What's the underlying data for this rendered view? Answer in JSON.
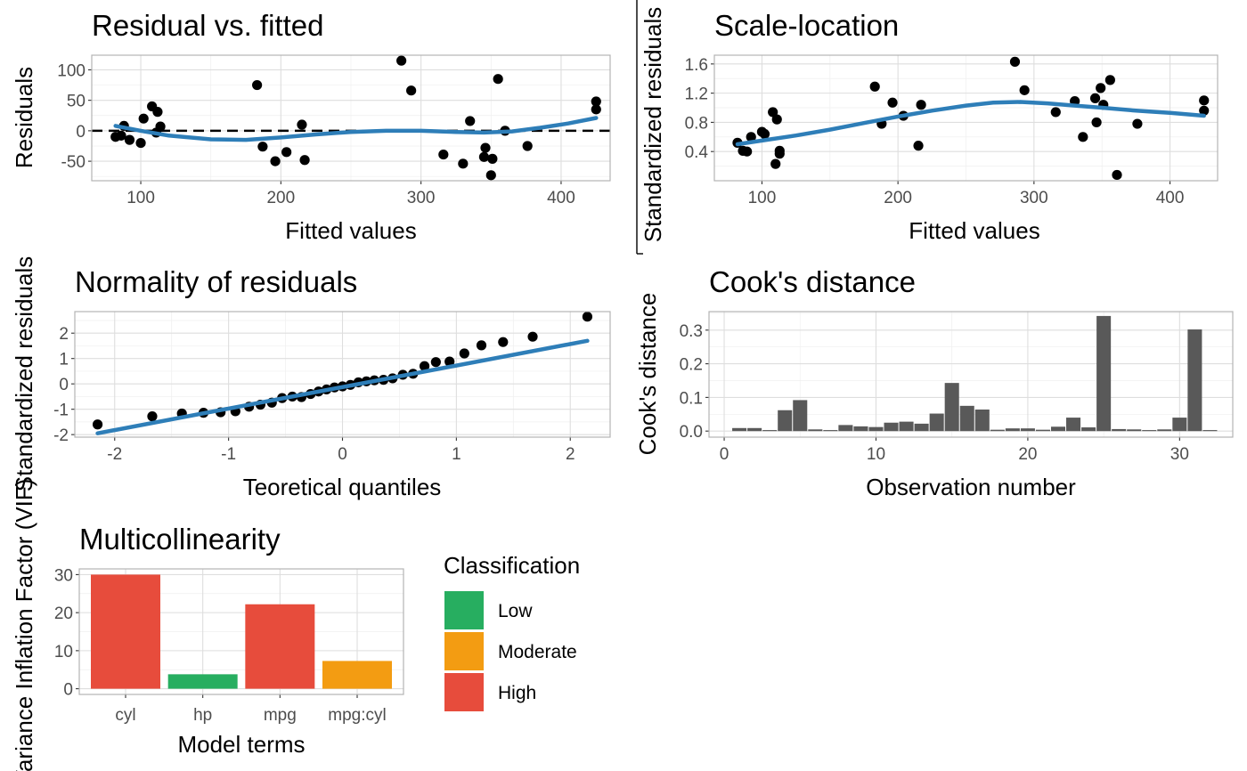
{
  "chart_data": [
    {
      "id": "resid",
      "type": "scatter",
      "title": "Residual vs. fitted",
      "xlabel": "Fitted values",
      "ylabel": "Residuals",
      "xlim": [
        65,
        435
      ],
      "ylim": [
        -82,
        124
      ],
      "xticks": [
        100,
        200,
        300,
        400
      ],
      "yticks": [
        -50,
        0,
        50,
        100
      ],
      "grid": true,
      "reference_line": {
        "y": 0,
        "style": "dashed",
        "color": "#000000"
      },
      "points_color": "#000000",
      "smooth_color": "#2e7eb8",
      "points": [
        [
          82,
          -10
        ],
        [
          86,
          -8
        ],
        [
          88,
          8
        ],
        [
          92,
          -15
        ],
        [
          100,
          -20
        ],
        [
          102,
          20
        ],
        [
          108,
          40
        ],
        [
          111,
          -3
        ],
        [
          112,
          31
        ],
        [
          114,
          7
        ],
        [
          183,
          75
        ],
        [
          187,
          -26
        ],
        [
          196,
          -50
        ],
        [
          204,
          -35
        ],
        [
          215,
          10
        ],
        [
          217,
          -48
        ],
        [
          286,
          115
        ],
        [
          293,
          66
        ],
        [
          316,
          -39
        ],
        [
          330,
          -54
        ],
        [
          335,
          16
        ],
        [
          345,
          -43
        ],
        [
          346,
          -28
        ],
        [
          350,
          -73
        ],
        [
          351,
          -46
        ],
        [
          355,
          85
        ],
        [
          360,
          0
        ],
        [
          376,
          -25
        ],
        [
          425,
          48
        ],
        [
          425,
          35
        ]
      ],
      "smooth": [
        [
          82,
          8
        ],
        [
          100,
          0
        ],
        [
          120,
          -8
        ],
        [
          150,
          -14
        ],
        [
          175,
          -15
        ],
        [
          200,
          -11
        ],
        [
          225,
          -6
        ],
        [
          250,
          -2
        ],
        [
          275,
          0
        ],
        [
          300,
          0
        ],
        [
          325,
          -2
        ],
        [
          345,
          -3
        ],
        [
          365,
          -1
        ],
        [
          385,
          5
        ],
        [
          405,
          12
        ],
        [
          425,
          21
        ]
      ]
    },
    {
      "id": "scaleloc",
      "type": "scatter",
      "title": "Scale-location",
      "xlabel": "Fitted values",
      "ylabel": "Standardized residuals",
      "xlim": [
        65,
        435
      ],
      "ylim": [
        0.0,
        1.72
      ],
      "xticks": [
        100,
        200,
        300,
        400
      ],
      "yticks": [
        0.4,
        0.8,
        1.2,
        1.6
      ],
      "yticklabels": [
        "0.4",
        "0.8",
        "1.2",
        "1.6"
      ],
      "grid": true,
      "points_color": "#000000",
      "smooth_color": "#2e7eb8",
      "points": [
        [
          82,
          0.52
        ],
        [
          86,
          0.41
        ],
        [
          89,
          0.4
        ],
        [
          92,
          0.6
        ],
        [
          100,
          0.67
        ],
        [
          102,
          0.64
        ],
        [
          108,
          0.94
        ],
        [
          110,
          0.23
        ],
        [
          111,
          0.84
        ],
        [
          113,
          0.41
        ],
        [
          113,
          0.37
        ],
        [
          183,
          1.29
        ],
        [
          188,
          0.78
        ],
        [
          196,
          1.07
        ],
        [
          204,
          0.89
        ],
        [
          215,
          0.48
        ],
        [
          217,
          1.04
        ],
        [
          286,
          1.63
        ],
        [
          293,
          1.24
        ],
        [
          316,
          0.94
        ],
        [
          330,
          1.09
        ],
        [
          336,
          0.6
        ],
        [
          345,
          1.13
        ],
        [
          346,
          0.8
        ],
        [
          349,
          1.27
        ],
        [
          351,
          1.04
        ],
        [
          356,
          1.38
        ],
        [
          361,
          0.08
        ],
        [
          376,
          0.78
        ],
        [
          425,
          1.1
        ],
        [
          425,
          0.96
        ]
      ],
      "smooth": [
        [
          82,
          0.5
        ],
        [
          100,
          0.55
        ],
        [
          125,
          0.62
        ],
        [
          150,
          0.7
        ],
        [
          175,
          0.79
        ],
        [
          200,
          0.88
        ],
        [
          225,
          0.96
        ],
        [
          250,
          1.03
        ],
        [
          270,
          1.07
        ],
        [
          290,
          1.08
        ],
        [
          310,
          1.06
        ],
        [
          330,
          1.03
        ],
        [
          350,
          1.0
        ],
        [
          375,
          0.96
        ],
        [
          400,
          0.93
        ],
        [
          425,
          0.89
        ]
      ]
    },
    {
      "id": "qq",
      "type": "scatter",
      "title": "Normality of residuals",
      "xlabel": "Teoretical quantiles",
      "ylabel": "Standardized residuals",
      "xlim": [
        -2.35,
        2.35
      ],
      "ylim": [
        -2.1,
        2.85
      ],
      "xticks": [
        -2,
        -1,
        0,
        1,
        2
      ],
      "yticks": [
        -2,
        -1,
        0,
        1,
        2
      ],
      "grid": true,
      "points_color": "#000000",
      "line_color": "#2e7eb8",
      "points": [
        [
          -2.15,
          -1.6
        ],
        [
          -1.67,
          -1.28
        ],
        [
          -1.41,
          -1.17
        ],
        [
          -1.22,
          -1.14
        ],
        [
          -1.07,
          -1.12
        ],
        [
          -0.94,
          -1.08
        ],
        [
          -0.82,
          -0.9
        ],
        [
          -0.72,
          -0.82
        ],
        [
          -0.62,
          -0.74
        ],
        [
          -0.53,
          -0.56
        ],
        [
          -0.44,
          -0.5
        ],
        [
          -0.36,
          -0.52
        ],
        [
          -0.28,
          -0.4
        ],
        [
          -0.21,
          -0.3
        ],
        [
          -0.14,
          -0.22
        ],
        [
          -0.07,
          -0.14
        ],
        [
          0.0,
          -0.1
        ],
        [
          0.07,
          -0.04
        ],
        [
          0.14,
          0.06
        ],
        [
          0.21,
          0.1
        ],
        [
          0.28,
          0.14
        ],
        [
          0.36,
          0.16
        ],
        [
          0.44,
          0.22
        ],
        [
          0.53,
          0.36
        ],
        [
          0.62,
          0.4
        ],
        [
          0.72,
          0.7
        ],
        [
          0.82,
          0.86
        ],
        [
          0.94,
          0.88
        ],
        [
          1.07,
          1.2
        ],
        [
          1.22,
          1.52
        ],
        [
          1.41,
          1.65
        ],
        [
          1.67,
          1.86
        ],
        [
          2.15,
          2.65
        ]
      ],
      "line": [
        [
          -2.15,
          -1.95
        ],
        [
          2.15,
          1.7
        ]
      ]
    },
    {
      "id": "cooks",
      "type": "bar",
      "title": "Cook's distance",
      "xlabel": "Observation number",
      "ylabel": "Cook's distance",
      "xlim": [
        -1.0,
        33.5
      ],
      "ylim": [
        -0.018,
        0.355
      ],
      "xticks": [
        0,
        10,
        20,
        30
      ],
      "yticks": [
        0.0,
        0.1,
        0.2,
        0.3
      ],
      "yticklabels": [
        "0.0",
        "0.1",
        "0.2",
        "0.3"
      ],
      "grid": true,
      "bar_color": "#595959",
      "x": [
        1,
        2,
        3,
        4,
        5,
        6,
        7,
        8,
        9,
        10,
        11,
        12,
        13,
        14,
        15,
        16,
        17,
        18,
        19,
        20,
        21,
        22,
        23,
        24,
        25,
        26,
        27,
        28,
        29,
        30,
        31,
        32
      ],
      "values": [
        0.009,
        0.009,
        0.003,
        0.062,
        0.092,
        0.005,
        0.003,
        0.018,
        0.014,
        0.012,
        0.025,
        0.028,
        0.022,
        0.052,
        0.143,
        0.075,
        0.064,
        0.004,
        0.008,
        0.008,
        0.004,
        0.013,
        0.04,
        0.011,
        0.342,
        0.006,
        0.005,
        0.003,
        0.005,
        0.04,
        0.302,
        0.003
      ]
    },
    {
      "id": "vif",
      "type": "bar",
      "title": "Multicollinearity",
      "xlabel": "Model terms",
      "ylabel": "Variance Inflation Factor (VIF)",
      "ylim": [
        -1.5,
        31.5
      ],
      "yticks": [
        0,
        10,
        20,
        30
      ],
      "grid": true,
      "categories": [
        "cyl",
        "hp",
        "mpg",
        "mpg:cyl"
      ],
      "values": [
        30.0,
        3.8,
        22.2,
        7.3
      ],
      "classes": [
        "High",
        "Low",
        "High",
        "Moderate"
      ],
      "legend": {
        "title": "Classification",
        "position": "right",
        "entries": [
          {
            "label": "Low",
            "color": "#27ae60"
          },
          {
            "label": "Moderate",
            "color": "#f39c12"
          },
          {
            "label": "High",
            "color": "#e74c3c"
          }
        ]
      }
    }
  ]
}
